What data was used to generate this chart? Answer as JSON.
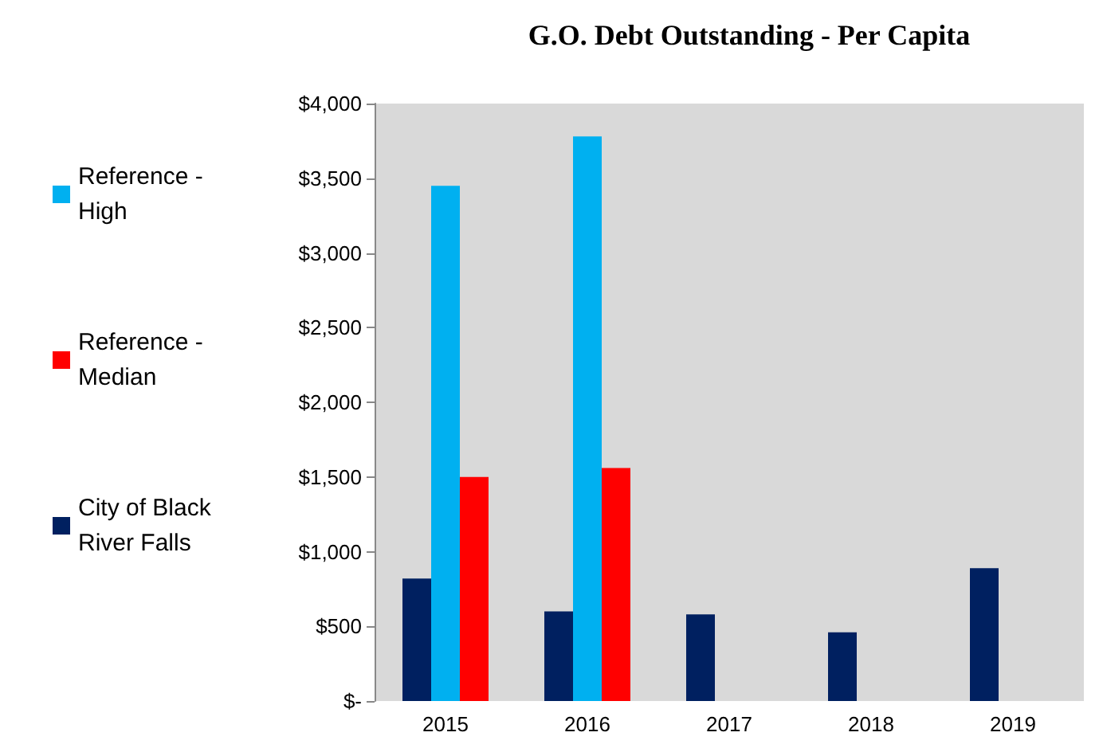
{
  "chart_data": {
    "type": "bar",
    "title": "G.O. Debt Outstanding - Per Capita",
    "categories": [
      "2015",
      "2016",
      "2017",
      "2018",
      "2019"
    ],
    "series": [
      {
        "name": "City of Black River Falls",
        "color": "#002060",
        "values": [
          820,
          600,
          580,
          460,
          890
        ]
      },
      {
        "name": "Reference - High",
        "color": "#00b0f0",
        "values": [
          3450,
          3780,
          null,
          null,
          null
        ]
      },
      {
        "name": "Reference - Median",
        "color": "#ff0000",
        "values": [
          1500,
          1560,
          null,
          null,
          null
        ]
      }
    ],
    "ylim": [
      0,
      4000
    ],
    "yticks": [
      {
        "value": 0,
        "label": "$-"
      },
      {
        "value": 500,
        "label": "$500"
      },
      {
        "value": 1000,
        "label": "$1,000"
      },
      {
        "value": 1500,
        "label": "$1,500"
      },
      {
        "value": 2000,
        "label": "$2,000"
      },
      {
        "value": 2500,
        "label": "$2,500"
      },
      {
        "value": 3000,
        "label": "$3,000"
      },
      {
        "value": 3500,
        "label": "$3,500"
      },
      {
        "value": 4000,
        "label": "$4,000"
      }
    ],
    "grid": false,
    "legend": "left"
  }
}
